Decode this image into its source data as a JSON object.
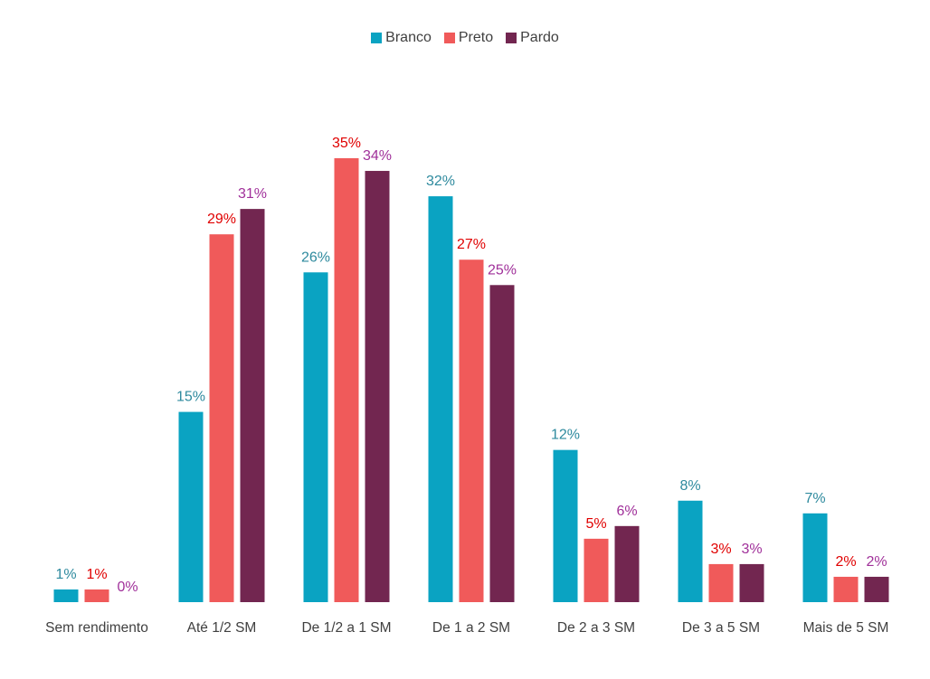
{
  "chart_data": {
    "type": "bar",
    "categories": [
      "Sem rendimento",
      "Até 1/2 SM",
      "De 1/2 a 1 SM",
      "De 1 a 2 SM",
      "De 2 a 3 SM",
      "De 3 a 5 SM",
      "Mais de 5 SM"
    ],
    "series": [
      {
        "name": "Branco",
        "color": "#0aa3c2",
        "label_color": "#2e8a9e",
        "values": [
          1,
          15,
          26,
          32,
          12,
          8,
          7
        ],
        "value_labels": [
          "1%",
          "15%",
          "26%",
          "32%",
          "12%",
          "8%",
          "7%"
        ]
      },
      {
        "name": "Preto",
        "color": "#f05a5a",
        "label_color": "#e00000",
        "values": [
          1,
          29,
          35,
          27,
          5,
          3,
          2
        ],
        "value_labels": [
          "1%",
          "29%",
          "35%",
          "27%",
          "5%",
          "3%",
          "2%"
        ]
      },
      {
        "name": "Pardo",
        "color": "#722650",
        "label_color": "#a0309a",
        "values": [
          0,
          31,
          34,
          25,
          6,
          3,
          2
        ],
        "value_labels": [
          "0%",
          "31%",
          "34%",
          "25%",
          "6%",
          "3%",
          "2%"
        ]
      }
    ],
    "ylim": [
      0,
      35
    ],
    "legend": "top"
  }
}
